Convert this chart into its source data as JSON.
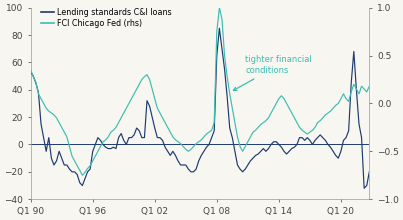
{
  "left_ylim": [
    -40,
    100
  ],
  "right_ylim": [
    -1,
    1
  ],
  "left_yticks": [
    -40,
    -20,
    0,
    20,
    40,
    60,
    80,
    100
  ],
  "right_yticks": [
    -1,
    -0.5,
    0,
    0.5,
    1
  ],
  "xtick_labels": [
    "Q1 90",
    "Q1 96",
    "Q1 02",
    "Q1 08",
    "Q1 14",
    "Q1 20"
  ],
  "legend1": "Lending standards C&I loans",
  "legend2": "FCI Chicago Fed (rhs)",
  "annotation_text": "tighter financial\nconditions",
  "color_lending": "#1e3a6e",
  "color_fci": "#3dbdb0",
  "annotation_color": "#3dbdb0",
  "background_color": "#f7f6f1",
  "zero_line_color": "#1e3a6e",
  "lending_data": [
    53,
    50,
    45,
    38,
    15,
    5,
    -5,
    5,
    -10,
    -15,
    -12,
    -5,
    -10,
    -15,
    -15,
    -18,
    -20,
    -20,
    -22,
    -28,
    -30,
    -25,
    -20,
    -18,
    -5,
    0,
    5,
    3,
    0,
    -2,
    -3,
    -3,
    -2,
    -3,
    5,
    8,
    3,
    0,
    5,
    5,
    7,
    12,
    10,
    5,
    5,
    32,
    28,
    20,
    12,
    5,
    5,
    3,
    -2,
    -5,
    -8,
    -5,
    -8,
    -12,
    -15,
    -15,
    -15,
    -18,
    -20,
    -20,
    -18,
    -12,
    -8,
    -5,
    -2,
    0,
    5,
    10,
    65,
    85,
    70,
    55,
    35,
    12,
    5,
    -5,
    -15,
    -18,
    -20,
    -18,
    -15,
    -12,
    -10,
    -8,
    -7,
    -5,
    -3,
    -5,
    -3,
    0,
    2,
    2,
    0,
    -2,
    -5,
    -7,
    -5,
    -3,
    -2,
    0,
    5,
    5,
    3,
    5,
    3,
    0,
    3,
    5,
    7,
    5,
    3,
    0,
    -2,
    -5,
    -8,
    -10,
    -5,
    3,
    5,
    10,
    45,
    68,
    40,
    15,
    5,
    -32,
    -30,
    -20
  ],
  "fci_data": [
    0.35,
    0.28,
    0.22,
    0.1,
    0.05,
    0.0,
    -0.05,
    -0.08,
    -0.1,
    -0.12,
    -0.15,
    -0.2,
    -0.25,
    -0.3,
    -0.35,
    -0.45,
    -0.55,
    -0.6,
    -0.65,
    -0.7,
    -0.75,
    -0.72,
    -0.68,
    -0.65,
    -0.6,
    -0.55,
    -0.5,
    -0.45,
    -0.4,
    -0.38,
    -0.35,
    -0.3,
    -0.28,
    -0.25,
    -0.2,
    -0.15,
    -0.1,
    -0.05,
    0.0,
    0.05,
    0.1,
    0.15,
    0.2,
    0.25,
    0.28,
    0.3,
    0.25,
    0.15,
    0.05,
    -0.05,
    -0.1,
    -0.15,
    -0.2,
    -0.25,
    -0.3,
    -0.35,
    -0.38,
    -0.4,
    -0.42,
    -0.45,
    -0.48,
    -0.5,
    -0.48,
    -0.45,
    -0.42,
    -0.4,
    -0.38,
    -0.35,
    -0.32,
    -0.3,
    -0.28,
    -0.2,
    0.75,
    1.0,
    0.88,
    0.5,
    0.28,
    0.1,
    -0.05,
    -0.2,
    -0.35,
    -0.45,
    -0.5,
    -0.45,
    -0.4,
    -0.35,
    -0.3,
    -0.28,
    -0.25,
    -0.22,
    -0.2,
    -0.18,
    -0.15,
    -0.1,
    -0.05,
    0.0,
    0.05,
    0.08,
    0.05,
    0.0,
    -0.05,
    -0.1,
    -0.15,
    -0.2,
    -0.25,
    -0.28,
    -0.3,
    -0.32,
    -0.3,
    -0.28,
    -0.25,
    -0.2,
    -0.18,
    -0.15,
    -0.12,
    -0.1,
    -0.08,
    -0.05,
    -0.02,
    0.0,
    0.05,
    0.1,
    0.05,
    0.02,
    0.12,
    0.2,
    0.15,
    0.1,
    0.18,
    0.15,
    0.12,
    0.18
  ]
}
